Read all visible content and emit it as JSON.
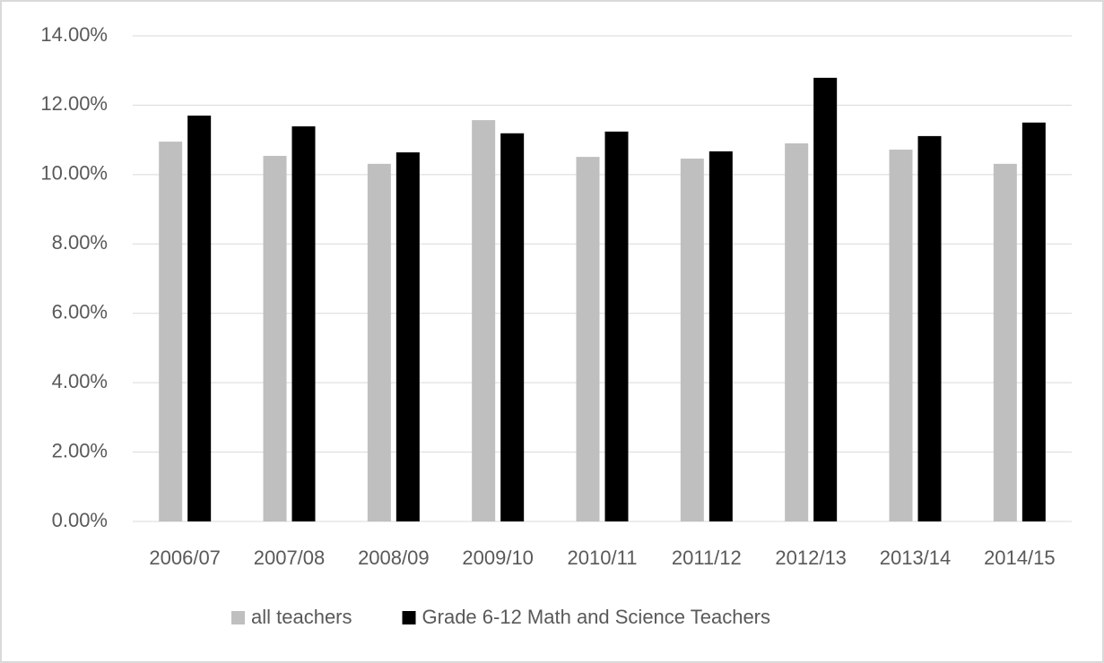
{
  "chart_data": {
    "type": "bar",
    "categories": [
      "2006/07",
      "2007/08",
      "2008/09",
      "2009/10",
      "2010/11",
      "2011/12",
      "2012/13",
      "2013/14",
      "2014/15"
    ],
    "series": [
      {
        "name": "all teachers",
        "color": "#bfbfbf",
        "values": [
          10.95,
          10.54,
          10.31,
          11.57,
          10.51,
          10.46,
          10.9,
          10.72,
          10.31
        ]
      },
      {
        "name": "Grade 6-12 Math and Science Teachers",
        "color": "#000000",
        "values": [
          11.7,
          11.39,
          10.64,
          11.19,
          11.24,
          10.67,
          12.79,
          11.11,
          11.5
        ]
      }
    ],
    "ylim": [
      0,
      14
    ],
    "yticks": [
      {
        "value": 0,
        "label": "0.00%"
      },
      {
        "value": 2,
        "label": "2.00%"
      },
      {
        "value": 4,
        "label": "4.00%"
      },
      {
        "value": 6,
        "label": "6.00%"
      },
      {
        "value": 8,
        "label": "8.00%"
      },
      {
        "value": 10,
        "label": "10.00%"
      },
      {
        "value": 12,
        "label": "12.00%"
      },
      {
        "value": 14,
        "label": "14.00%"
      }
    ],
    "grid": true,
    "legend": "bottom"
  }
}
